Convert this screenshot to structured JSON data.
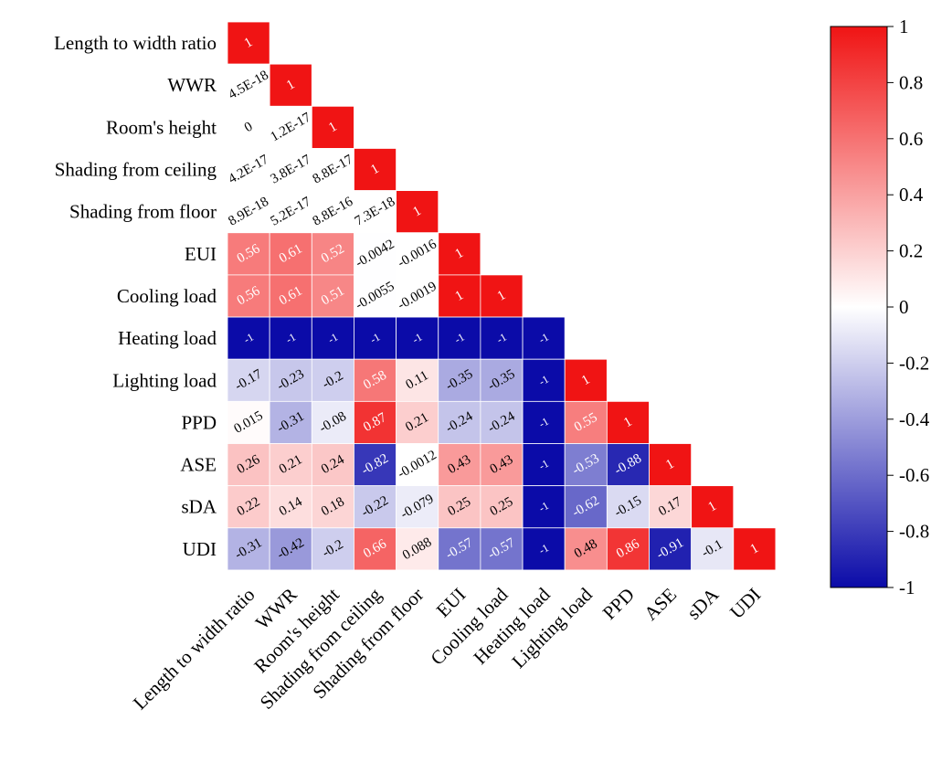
{
  "chart_data": {
    "type": "heatmap",
    "title": "",
    "variables": [
      "Length to width ratio",
      "WWR",
      "Room's height",
      "Shading from ceiling",
      "Shading from floor",
      "EUI",
      "Cooling load",
      "Heating load",
      "Lighting load",
      "PPD",
      "ASE",
      "sDA",
      "UDI"
    ],
    "matrix_lower_triangle": [
      [
        "1"
      ],
      [
        "4.5E-18",
        "1"
      ],
      [
        "0",
        "1.2E-17",
        "1"
      ],
      [
        "4.2E-17",
        "3.8E-17",
        "8.8E-17",
        "1"
      ],
      [
        "8.9E-18",
        "5.2E-17",
        "8.8E-16",
        "7.3E-18",
        "1"
      ],
      [
        "0.56",
        "0.61",
        "0.52",
        "-0.0042",
        "-0.0016",
        "1"
      ],
      [
        "0.56",
        "0.61",
        "0.51",
        "-0.0055",
        "-0.0019",
        "1",
        "1"
      ],
      [
        "-1",
        "-1",
        "-1",
        "-1",
        "-1",
        "-1",
        "-1",
        "-1"
      ],
      [
        "-0.17",
        "-0.23",
        "-0.2",
        "0.58",
        "0.11",
        "-0.35",
        "-0.35",
        "-1",
        "1"
      ],
      [
        "0.015",
        "-0.31",
        "-0.08",
        "0.87",
        "0.21",
        "-0.24",
        "-0.24",
        "-1",
        "0.55",
        "1"
      ],
      [
        "0.26",
        "0.21",
        "0.24",
        "-0.82",
        "-0.0012",
        "0.43",
        "0.43",
        "-1",
        "-0.53",
        "-0.88",
        "1"
      ],
      [
        "0.22",
        "0.14",
        "0.18",
        "-0.22",
        "-0.079",
        "0.25",
        "0.25",
        "-1",
        "-0.62",
        "-0.15",
        "0.17",
        "1"
      ],
      [
        "-0.31",
        "-0.42",
        "-0.2",
        "0.66",
        "0.088",
        "-0.57",
        "-0.57",
        "-1",
        "0.48",
        "0.86",
        "-0.91",
        "-0.1",
        "1"
      ]
    ],
    "value_range": [
      -1,
      1
    ],
    "colorscale": {
      "low": "#0b0ba8",
      "mid": "#ffffff",
      "high": "#f01414"
    },
    "colorbar_ticks": [
      "1",
      "0.8",
      "0.6",
      "0.4",
      "0.2",
      "0",
      "-0.2",
      "-0.4",
      "-0.6",
      "-0.8",
      "-1"
    ],
    "legend_position": "right",
    "grid": false
  }
}
